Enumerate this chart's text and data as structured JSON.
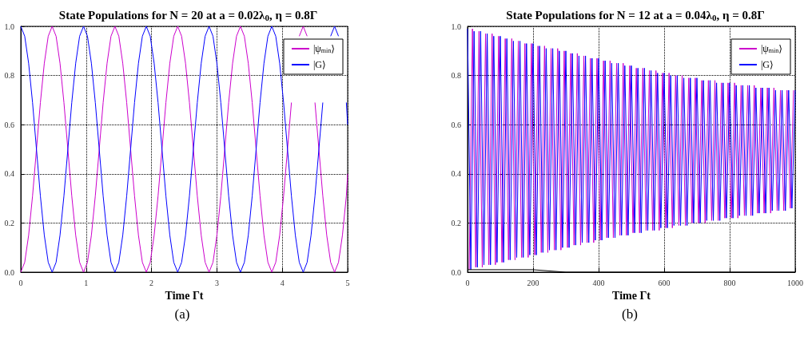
{
  "chart_data": [
    {
      "type": "line",
      "title": "State Populations for N = 20 at a = 0.02λ$_{0}$, η = 0.8Γ",
      "xlabel": "Time Γt",
      "annotations": [
        "(a)"
      ],
      "x": [
        0,
        0.06,
        0.12,
        0.18,
        0.24,
        0.3,
        0.36,
        0.42,
        0.48,
        0.54,
        0.6,
        0.66,
        0.72,
        0.78,
        0.84,
        0.9,
        0.96,
        1.02,
        1.08,
        1.14,
        1.2,
        1.26,
        1.32,
        1.38,
        1.44,
        1.5,
        1.56,
        1.62,
        1.68,
        1.74,
        1.8,
        1.86,
        1.92,
        1.98,
        2.04,
        2.1,
        2.16,
        2.22,
        2.28,
        2.34,
        2.4,
        2.46,
        2.52,
        2.58,
        2.64,
        2.7,
        2.76,
        2.82,
        2.88,
        2.94,
        3,
        3.06,
        3.12,
        3.18,
        3.24,
        3.3,
        3.36,
        3.42,
        3.48,
        3.54,
        3.6,
        3.66,
        3.72,
        3.78,
        3.84,
        3.9,
        3.96,
        4.02,
        4.08,
        4.14,
        4.2,
        4.26,
        4.32,
        4.38,
        4.44,
        4.5,
        4.56,
        4.62,
        4.68,
        4.74,
        4.8,
        4.86,
        4.92,
        4.98,
        5
      ],
      "series": [
        {
          "name": "|ψ$_{min}$⟩",
          "color": "#cc00cc",
          "values": [
            0,
            0.04,
            0.15,
            0.31,
            0.5,
            0.69,
            0.85,
            0.96,
            1,
            0.96,
            0.85,
            0.69,
            0.5,
            0.31,
            0.15,
            0.04,
            0,
            0.04,
            0.15,
            0.31,
            0.5,
            0.69,
            0.85,
            0.96,
            1,
            0.96,
            0.85,
            0.69,
            0.5,
            0.31,
            0.15,
            0.04,
            0,
            0.04,
            0.15,
            0.31,
            0.5,
            0.69,
            0.85,
            0.96,
            1,
            0.96,
            0.85,
            0.69,
            0.5,
            0.31,
            0.15,
            0.04,
            0,
            0.04,
            0.15,
            0.31,
            0.5,
            0.69,
            0.85,
            0.96,
            1,
            0.96,
            0.85,
            0.69,
            0.5,
            0.31,
            0.15,
            0.04,
            0,
            0.04,
            0.15,
            0.31,
            0.5,
            0.69,
            null,
            0.96,
            1,
            0.96,
            null,
            0.69,
            0.5,
            0.31,
            0.15,
            0.04,
            0,
            0.04,
            0.15,
            0.31,
            0.4
          ]
        },
        {
          "name": "|G⟩",
          "color": "#0000ff",
          "values": [
            1,
            0.96,
            0.85,
            0.69,
            0.5,
            0.31,
            0.15,
            0.04,
            0,
            0.04,
            0.15,
            0.31,
            0.5,
            0.69,
            0.85,
            0.96,
            1,
            0.96,
            0.85,
            0.69,
            0.5,
            0.31,
            0.15,
            0.04,
            0,
            0.04,
            0.15,
            0.31,
            0.5,
            0.69,
            0.85,
            0.96,
            1,
            0.96,
            0.85,
            0.69,
            0.5,
            0.31,
            0.15,
            0.04,
            0,
            0.04,
            0.15,
            0.31,
            0.5,
            0.69,
            0.85,
            0.96,
            1,
            0.96,
            0.85,
            0.69,
            0.5,
            0.31,
            0.15,
            0.04,
            0,
            0.04,
            0.15,
            0.31,
            0.5,
            0.69,
            0.85,
            0.96,
            1,
            0.96,
            0.85,
            0.69,
            0.5,
            0.31,
            0.15,
            0.04,
            0,
            0.04,
            0.15,
            0.31,
            0.5,
            0.69,
            null,
            0.96,
            1,
            0.96,
            null,
            0.69,
            0.6
          ]
        }
      ],
      "xlim": [
        0,
        5
      ],
      "xticks": [
        0,
        1,
        2,
        3,
        4,
        5
      ],
      "ylim": [
        0,
        1
      ],
      "yticks": [
        {
          "value": 0,
          "label": "0.0"
        },
        {
          "value": 0.2,
          "label": "0.2"
        },
        {
          "value": 0.4,
          "label": "0.4"
        },
        {
          "value": 0.6,
          "label": "0.6"
        },
        {
          "value": 0.8,
          "label": "0.8"
        },
        {
          "value": 1,
          "label": "1.0"
        }
      ],
      "grid": true,
      "legend": "top right"
    },
    {
      "type": "line",
      "title": "State Populations for N = 12 at a = 0.04λ$_{0}$, η = 0.8Γ",
      "xlabel": "Time Γt",
      "annotations": [
        "(b)"
      ],
      "series": [
        {
          "name": "|ψ$_{min}$⟩",
          "color": "#cc00cc",
          "x": [
            5,
            15,
            25,
            35,
            45,
            55,
            65,
            75,
            85,
            95,
            105,
            115,
            125,
            135,
            145,
            155,
            165,
            175,
            185,
            195,
            205,
            215,
            225,
            235,
            245,
            255,
            265,
            275,
            285,
            295,
            305,
            315,
            325,
            335,
            345,
            355,
            365,
            375,
            385,
            395,
            405,
            415,
            425,
            435,
            445,
            455,
            465,
            475,
            485,
            495,
            505,
            515,
            525,
            535,
            545,
            555,
            565,
            575,
            585,
            595,
            605,
            615,
            625,
            635,
            645,
            655,
            665,
            675,
            685,
            695,
            705,
            715,
            725,
            735,
            745,
            755,
            765,
            775,
            785,
            795,
            805,
            815,
            825,
            835,
            845,
            855,
            865,
            875,
            885,
            895,
            905,
            915,
            925,
            935,
            945,
            955,
            965,
            975,
            985,
            995
          ],
          "values": [
            0.01,
            0.99,
            0.02,
            0.98,
            0.02,
            0.97,
            0.03,
            0.97,
            0.03,
            0.96,
            0.04,
            0.95,
            0.05,
            0.95,
            0.05,
            0.94,
            0.06,
            0.93,
            0.06,
            0.93,
            0.07,
            0.92,
            0.08,
            0.92,
            0.08,
            0.91,
            0.09,
            0.91,
            0.09,
            0.9,
            0.1,
            0.89,
            0.11,
            0.89,
            0.11,
            0.88,
            0.12,
            0.87,
            0.12,
            0.87,
            0.13,
            0.86,
            0.14,
            0.86,
            0.14,
            0.85,
            0.15,
            0.85,
            0.15,
            0.84,
            0.16,
            0.83,
            0.16,
            0.83,
            0.17,
            0.82,
            0.17,
            0.82,
            0.17,
            0.81,
            0.18,
            0.81,
            0.18,
            0.8,
            0.19,
            0.8,
            0.19,
            0.79,
            0.2,
            0.79,
            0.2,
            0.78,
            0.2,
            0.78,
            0.21,
            0.78,
            0.21,
            0.77,
            0.22,
            0.77,
            0.22,
            0.77,
            0.22,
            0.76,
            0.23,
            0.76,
            0.23,
            0.76,
            0.24,
            0.75,
            0.24,
            0.75,
            0.24,
            0.75,
            0.25,
            0.74,
            0.25,
            0.74,
            0.26,
            0.74
          ]
        },
        {
          "name": "|G⟩",
          "color": "#0000ff",
          "x": [
            0,
            10,
            20,
            30,
            40,
            50,
            60,
            70,
            80,
            90,
            100,
            110,
            120,
            130,
            140,
            150,
            160,
            170,
            180,
            190,
            200,
            210,
            220,
            230,
            240,
            250,
            260,
            270,
            280,
            290,
            300,
            310,
            320,
            330,
            340,
            350,
            360,
            370,
            380,
            390,
            400,
            410,
            420,
            430,
            440,
            450,
            460,
            470,
            480,
            490,
            500,
            510,
            520,
            530,
            540,
            550,
            560,
            570,
            580,
            590,
            600,
            610,
            620,
            630,
            640,
            650,
            660,
            670,
            680,
            690,
            700,
            710,
            720,
            730,
            740,
            750,
            760,
            770,
            780,
            790,
            800,
            810,
            820,
            830,
            840,
            850,
            860,
            870,
            880,
            890,
            900,
            910,
            920,
            930,
            940,
            950,
            960,
            970,
            980,
            990,
            1000
          ],
          "values": [
            0.99,
            0.01,
            0.98,
            0.02,
            0.98,
            0.03,
            0.97,
            0.03,
            0.96,
            0.04,
            0.96,
            0.04,
            0.95,
            0.05,
            0.94,
            0.06,
            0.94,
            0.06,
            0.93,
            0.07,
            0.93,
            0.07,
            0.92,
            0.08,
            0.91,
            0.09,
            0.91,
            0.09,
            0.9,
            0.1,
            0.9,
            0.1,
            0.89,
            0.11,
            0.88,
            0.12,
            0.88,
            0.12,
            0.87,
            0.13,
            0.87,
            0.13,
            0.86,
            0.14,
            0.85,
            0.14,
            0.85,
            0.15,
            0.84,
            0.15,
            0.84,
            0.16,
            0.83,
            0.16,
            0.83,
            0.17,
            0.82,
            0.17,
            0.81,
            0.18,
            0.81,
            0.18,
            0.8,
            0.19,
            0.8,
            0.19,
            0.79,
            0.19,
            0.79,
            0.2,
            0.79,
            0.2,
            0.78,
            0.21,
            0.78,
            0.21,
            0.77,
            0.21,
            0.77,
            0.22,
            0.77,
            0.22,
            0.76,
            0.23,
            0.76,
            0.23,
            0.76,
            0.23,
            0.75,
            0.24,
            0.75,
            0.24,
            0.75,
            0.25,
            0.74,
            0.25,
            0.74,
            0.25,
            0.74,
            0.26,
            0.74
          ]
        },
        {
          "color": "#000000",
          "x": [
            0,
            100,
            200,
            300,
            400,
            500,
            600,
            700,
            800,
            900,
            1000
          ],
          "values": [
            0.01,
            0.01,
            0.01,
            0,
            0,
            0,
            0,
            0,
            0,
            0,
            0
          ]
        }
      ],
      "xlim": [
        0,
        1000
      ],
      "xticks": [
        0,
        200,
        400,
        600,
        800,
        1000
      ],
      "ylim": [
        0,
        1
      ],
      "yticks": [
        {
          "value": 0,
          "label": "0.0"
        },
        {
          "value": 0.2,
          "label": "0.2"
        },
        {
          "value": 0.4,
          "label": "0.4"
        },
        {
          "value": 0.6,
          "label": "0.6"
        },
        {
          "value": 0.8,
          "label": "0.8"
        },
        {
          "value": 1,
          "label": "1.0"
        }
      ],
      "grid": true,
      "legend": "top right"
    }
  ]
}
